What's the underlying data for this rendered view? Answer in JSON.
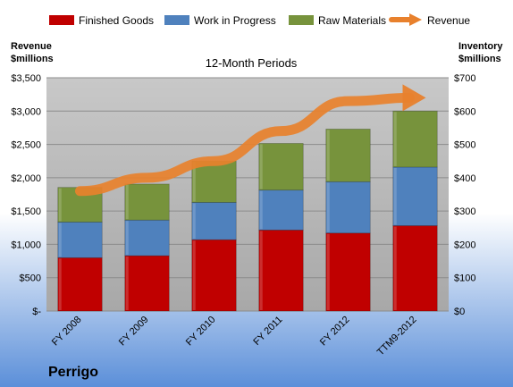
{
  "chart_data": {
    "type": "bar",
    "subtitle": "12-Month Periods",
    "company": "Perrigo",
    "categories": [
      "FY 2008",
      "FY 2009",
      "FY 2010",
      "FY 2011",
      "FY 2012",
      "TTM9-2012"
    ],
    "series": [
      {
        "name": "Finished Goods",
        "axis": "right",
        "color": "#C00000",
        "values": [
          160,
          166,
          214,
          243,
          234,
          256
        ]
      },
      {
        "name": "Work in Progress",
        "axis": "right",
        "color": "#4F81BD",
        "values": [
          107,
          107,
          112,
          120,
          154,
          176
        ]
      },
      {
        "name": "Raw Materials",
        "axis": "right",
        "color": "#77933C",
        "values": [
          104,
          108,
          124,
          140,
          158,
          168
        ]
      },
      {
        "name": "Revenue",
        "axis": "left",
        "type": "line",
        "color": "#E8812D",
        "values": [
          1800,
          2000,
          2250,
          2700,
          3150,
          3200
        ]
      }
    ],
    "left_axis": {
      "title_line1": "Revenue",
      "title_line2": "$millions",
      "range": [
        0,
        3500
      ],
      "ticks": [
        {
          "value": 0,
          "label": "$-"
        },
        {
          "value": 500,
          "label": "$500"
        },
        {
          "value": 1000,
          "label": "$1,000"
        },
        {
          "value": 1500,
          "label": "$1,500"
        },
        {
          "value": 2000,
          "label": "$2,000"
        },
        {
          "value": 2500,
          "label": "$2,500"
        },
        {
          "value": 3000,
          "label": "$3,000"
        },
        {
          "value": 3500,
          "label": "$3,500"
        }
      ]
    },
    "right_axis": {
      "title_line1": "Inventory",
      "title_line2": "$millions",
      "range": [
        0,
        700
      ],
      "ticks": [
        {
          "value": 0,
          "label": "$0"
        },
        {
          "value": 100,
          "label": "$100"
        },
        {
          "value": 200,
          "label": "$200"
        },
        {
          "value": 300,
          "label": "$300"
        },
        {
          "value": 400,
          "label": "$400"
        },
        {
          "value": 500,
          "label": "$500"
        },
        {
          "value": 600,
          "label": "$600"
        },
        {
          "value": 700,
          "label": "$700"
        }
      ]
    },
    "grid": true,
    "legend_position": "top",
    "colors": {
      "plot_background": "#B8B8B8",
      "background_top": "#FFFFFF",
      "background_bottom": "#5B8FD9"
    }
  }
}
